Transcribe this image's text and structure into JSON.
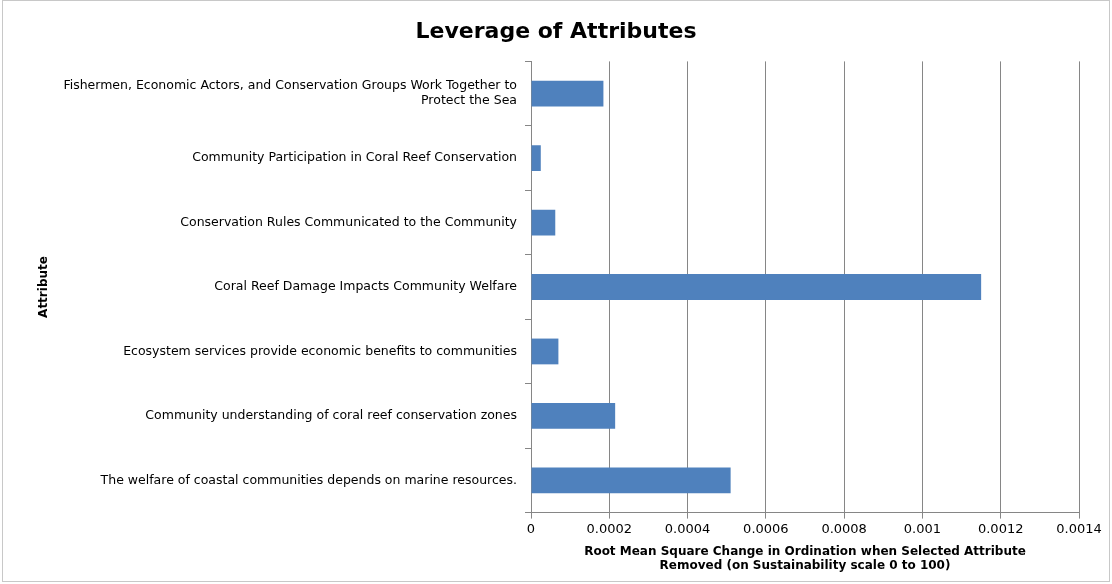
{
  "chart_data": {
    "type": "bar",
    "orientation": "horizontal",
    "title": "Leverage of Attributes",
    "xlabel": "Root Mean Square Change in Ordination when Selected Attribute Removed (on Sustainability scale 0 to 100)",
    "ylabel": "Attribute",
    "categories": [
      "Fishermen, Economic Actors, and Conservation Groups Work Together to Protect the Sea",
      "Community Participation in Coral Reef Conservation",
      "Conservation Rules Communicated to the Community",
      "Coral Reef Damage Impacts Community Welfare",
      "Ecosystem services provide economic benefits to communities",
      "Community understanding of coral reef conservation zones",
      "The welfare of coastal communities depends on marine resources."
    ],
    "values": [
      0.000185,
      2.5e-05,
      6.2e-05,
      0.00115,
      7e-05,
      0.000215,
      0.00051
    ],
    "color": "#4f81bd",
    "xlim": [
      0,
      0.0014
    ],
    "xticks": [
      0,
      0.0002,
      0.0004,
      0.0006,
      0.0008,
      0.001,
      0.0012,
      0.0014
    ],
    "grid": "x",
    "legend": false
  }
}
